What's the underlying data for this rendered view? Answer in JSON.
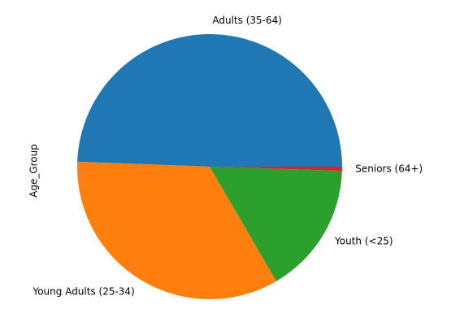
{
  "chart_data": {
    "type": "pie",
    "ylabel": "Age_Group",
    "categories": [
      "Adults (35-64)",
      "Young Adults (25-34)",
      "Youth (<25)",
      "Seniors (64+)"
    ],
    "values": [
      49.4,
      34.0,
      16.1,
      0.5
    ],
    "colors": [
      "#1f77b4",
      "#ff7f0e",
      "#2ca02c",
      "#d62728"
    ]
  }
}
